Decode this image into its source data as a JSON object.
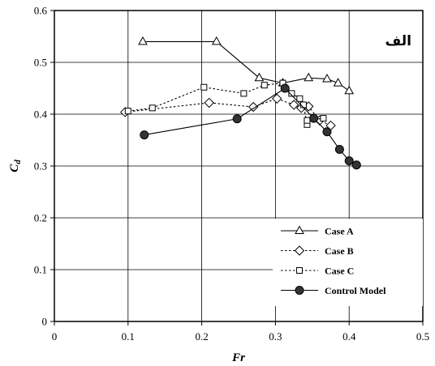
{
  "chart_data": {
    "type": "line",
    "title": "",
    "panel_label": "الف",
    "xlabel": "Fr",
    "ylabel_main": "C",
    "ylabel_sub": "d",
    "xlim": [
      0,
      0.5
    ],
    "ylim": [
      0,
      0.6
    ],
    "x_ticks": [
      "0",
      "0.1",
      "0.2",
      "0.3",
      "0.4",
      "0.5"
    ],
    "y_ticks": [
      "0",
      "0.1",
      "0.2",
      "0.3",
      "0.4",
      "0.5",
      "0.6"
    ],
    "grid": true,
    "legend_position": "bottom-right",
    "series": [
      {
        "name": "Case A",
        "marker": "triangle",
        "line": "solid",
        "points": [
          [
            0.12,
            0.54
          ],
          [
            0.22,
            0.54
          ],
          [
            0.278,
            0.47
          ],
          [
            0.31,
            0.46
          ],
          [
            0.345,
            0.47
          ],
          [
            0.37,
            0.468
          ],
          [
            0.385,
            0.46
          ],
          [
            0.4,
            0.445
          ]
        ]
      },
      {
        "name": "Case B",
        "marker": "diamond",
        "line": "dotted",
        "points": [
          [
            0.096,
            0.404
          ],
          [
            0.21,
            0.422
          ],
          [
            0.27,
            0.414
          ],
          [
            0.302,
            0.43
          ],
          [
            0.325,
            0.418
          ],
          [
            0.335,
            0.412
          ],
          [
            0.345,
            0.415
          ],
          [
            0.36,
            0.388
          ],
          [
            0.375,
            0.378
          ]
        ]
      },
      {
        "name": "Case C",
        "marker": "square",
        "line": "dotted",
        "points": [
          [
            0.1,
            0.406
          ],
          [
            0.133,
            0.412
          ],
          [
            0.203,
            0.452
          ],
          [
            0.257,
            0.44
          ],
          [
            0.285,
            0.456
          ],
          [
            0.31,
            0.46
          ],
          [
            0.322,
            0.44
          ],
          [
            0.333,
            0.43
          ],
          [
            0.338,
            0.418
          ],
          [
            0.343,
            0.38
          ],
          [
            0.343,
            0.388
          ],
          [
            0.365,
            0.392
          ]
        ]
      },
      {
        "name": "Control Model",
        "marker": "circle",
        "line": "solid",
        "points": [
          [
            0.122,
            0.36
          ],
          [
            0.248,
            0.391
          ],
          [
            0.313,
            0.45
          ],
          [
            0.352,
            0.392
          ],
          [
            0.37,
            0.366
          ],
          [
            0.387,
            0.332
          ],
          [
            0.4,
            0.31
          ],
          [
            0.41,
            0.302
          ]
        ]
      }
    ]
  }
}
